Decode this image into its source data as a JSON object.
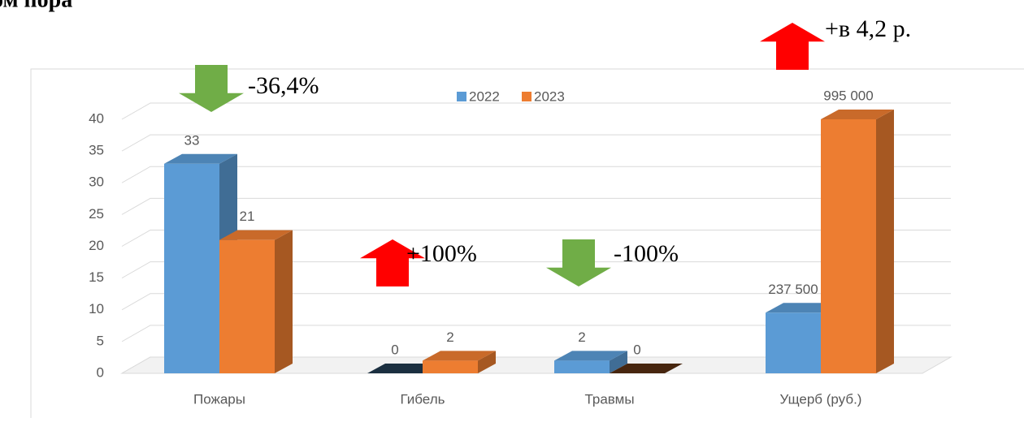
{
  "heading": "ом пора",
  "chart_data": [
    {
      "type": "bar3d",
      "categories": [
        "Пожары",
        "Гибель",
        "Травмы"
      ],
      "series": [
        {
          "name": "2022",
          "color": "#5b9bd5",
          "values": [
            33,
            0,
            2
          ]
        },
        {
          "name": "2023",
          "color": "#ed7d31",
          "values": [
            21,
            2,
            0
          ]
        }
      ],
      "ylim": [
        0,
        40
      ],
      "yticks": [
        0,
        5,
        10,
        15,
        20,
        25,
        30,
        35,
        40
      ],
      "grid": true,
      "legend": "top"
    },
    {
      "type": "bar3d",
      "categories": [
        "Ущерб (руб.)"
      ],
      "series": [
        {
          "color": "#5b9bd5",
          "values": [
            237500
          ],
          "value_labels": [
            "237 500"
          ]
        },
        {
          "color": "#ed7d31",
          "values": [
            995000
          ],
          "value_labels": [
            "995 000"
          ]
        }
      ],
      "ylim": [
        0,
        995000
      ]
    }
  ],
  "annotations": [
    {
      "text": "-36,4%",
      "direction": "down",
      "color": "#70ad47"
    },
    {
      "text": "+100%",
      "direction": "up",
      "color": "#ff0000"
    },
    {
      "text": "-100%",
      "direction": "down",
      "color": "#70ad47"
    },
    {
      "text": "+в 4,2 р.",
      "direction": "up",
      "color": "#ff0000"
    }
  ]
}
